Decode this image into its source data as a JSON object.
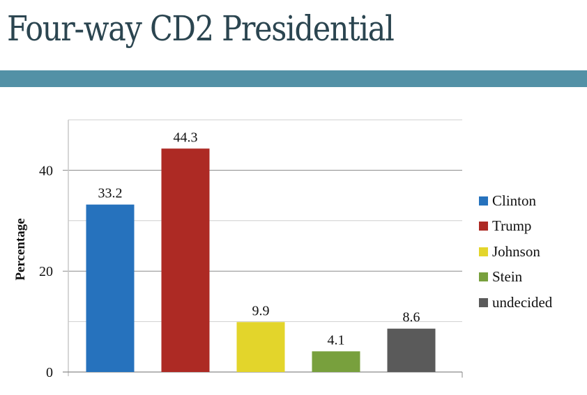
{
  "slide": {
    "title": "Four-way CD2 Presidential",
    "band_color": "#5391a6",
    "title_color": "#2b4550"
  },
  "chart_data": {
    "type": "bar",
    "title": "",
    "xlabel": "",
    "ylabel": "Percentage",
    "ylim": [
      0,
      50
    ],
    "yticks": [
      0,
      20,
      40
    ],
    "ytick_labels": [
      "0",
      "20",
      "40"
    ],
    "gridlines": [
      10,
      20,
      30,
      40,
      50
    ],
    "grid": true,
    "legend_position": "right",
    "categories": [
      "Clinton",
      "Trump",
      "Johnson",
      "Stein",
      "undecided"
    ],
    "values": [
      33.2,
      44.3,
      9.9,
      4.1,
      8.6
    ],
    "value_labels": [
      "33.2",
      "44.3",
      "9.9",
      "4.1",
      "8.6"
    ],
    "colors": [
      "#2672bd",
      "#ad2a24",
      "#e3d52b",
      "#78a03d",
      "#5a5a5a"
    ],
    "legend": [
      "Clinton",
      "Trump",
      "Johnson",
      "Stein",
      "undecided"
    ]
  }
}
